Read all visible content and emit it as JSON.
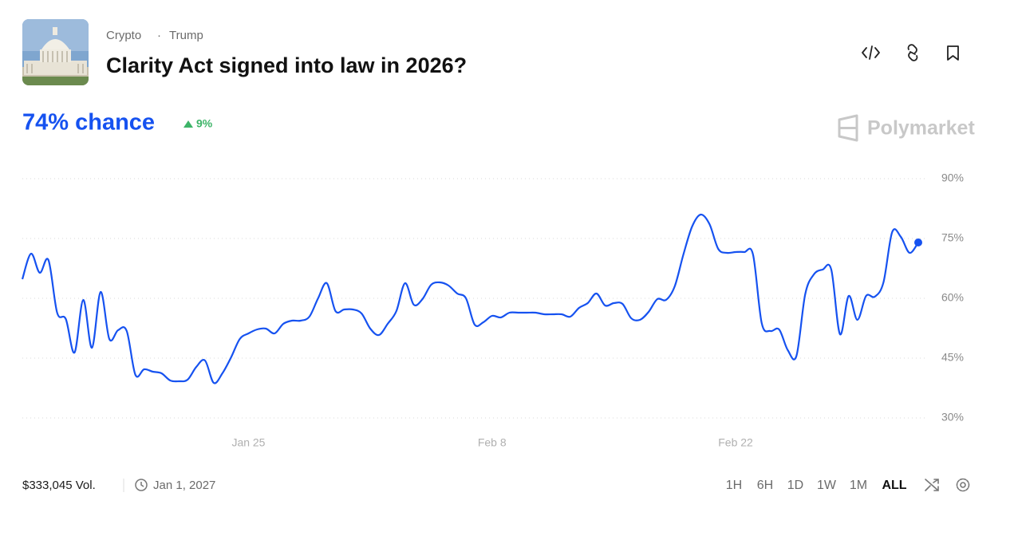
{
  "header": {
    "tags": [
      "Crypto",
      "Trump"
    ],
    "title": "Clarity Act signed into law in 2026?"
  },
  "headline": {
    "chance": "74% chance",
    "change": "9%"
  },
  "brand": "Polymarket",
  "chart_data": {
    "type": "line",
    "categories": [
      null,
      null,
      null,
      null,
      null,
      null,
      null,
      null,
      null,
      null,
      null,
      null,
      null,
      null,
      null,
      null,
      null,
      null,
      null,
      null,
      null,
      null,
      null,
      null,
      null,
      null,
      "Jan 25",
      null,
      null,
      null,
      null,
      null,
      null,
      null,
      null,
      null,
      null,
      null,
      null,
      null,
      null,
      null,
      null,
      null,
      null,
      null,
      null,
      null,
      null,
      null,
      null,
      null,
      null,
      null,
      "Feb 8",
      null,
      null,
      null,
      null,
      null,
      null,
      null,
      null,
      null,
      null,
      null,
      null,
      null,
      null,
      null,
      null,
      null,
      null,
      null,
      null,
      null,
      null,
      null,
      null,
      null,
      null,
      null,
      "Feb 22",
      null,
      null,
      null,
      null,
      null,
      null,
      null,
      null,
      null,
      null,
      null,
      null,
      null,
      null,
      null,
      null,
      null,
      null,
      null,
      null,
      null
    ],
    "series": [
      {
        "color": "#1652f0",
        "values": [
          64.8,
          71.2,
          66.4,
          69.6,
          56.4,
          54.8,
          46.4,
          59.6,
          47.6,
          61.6,
          49.8,
          52,
          51.8,
          40.8,
          42.2,
          41.6,
          41.2,
          39.4,
          39.2,
          39.6,
          42.8,
          44.4,
          38.8,
          41.2,
          45.2,
          49.8,
          51.2,
          52.2,
          52.4,
          51.2,
          53.6,
          54.4,
          54.4,
          55.4,
          60,
          63.8,
          56.8,
          57.2,
          57.2,
          56.2,
          52.4,
          50.8,
          53.6,
          56.8,
          63.8,
          58.4,
          59.8,
          63.4,
          64,
          63.2,
          61.2,
          60,
          53.4,
          54,
          55.6,
          55.2,
          56.4,
          56.4,
          56.4,
          56.4,
          56,
          56,
          56,
          55.4,
          57.6,
          58.8,
          61.2,
          58.2,
          58.8,
          58.6,
          55,
          54.6,
          56.6,
          59.8,
          59.6,
          63,
          71,
          78,
          81,
          78.6,
          72.4,
          71.4,
          71.6,
          71.6,
          71,
          53.8,
          51.8,
          52.2,
          47,
          45.6,
          61,
          66,
          67.2,
          67.2,
          51,
          60.6,
          54.6,
          60.6,
          60.4,
          64,
          76.6,
          75.4,
          71.4,
          74
        ]
      }
    ],
    "ylim": [
      30,
      90
    ],
    "yticks": [
      {
        "value": 30,
        "label": "30%"
      },
      {
        "value": 45,
        "label": "45%"
      },
      {
        "value": 60,
        "label": "60%"
      },
      {
        "value": 75,
        "label": "75%"
      },
      {
        "value": 90,
        "label": "90%"
      }
    ],
    "grid": true
  },
  "footer": {
    "volume": "$333,045 Vol.",
    "end_date": "Jan 1, 2027",
    "timeframes": [
      "1H",
      "6H",
      "1D",
      "1W",
      "1M",
      "ALL"
    ],
    "active_timeframe": "ALL"
  }
}
